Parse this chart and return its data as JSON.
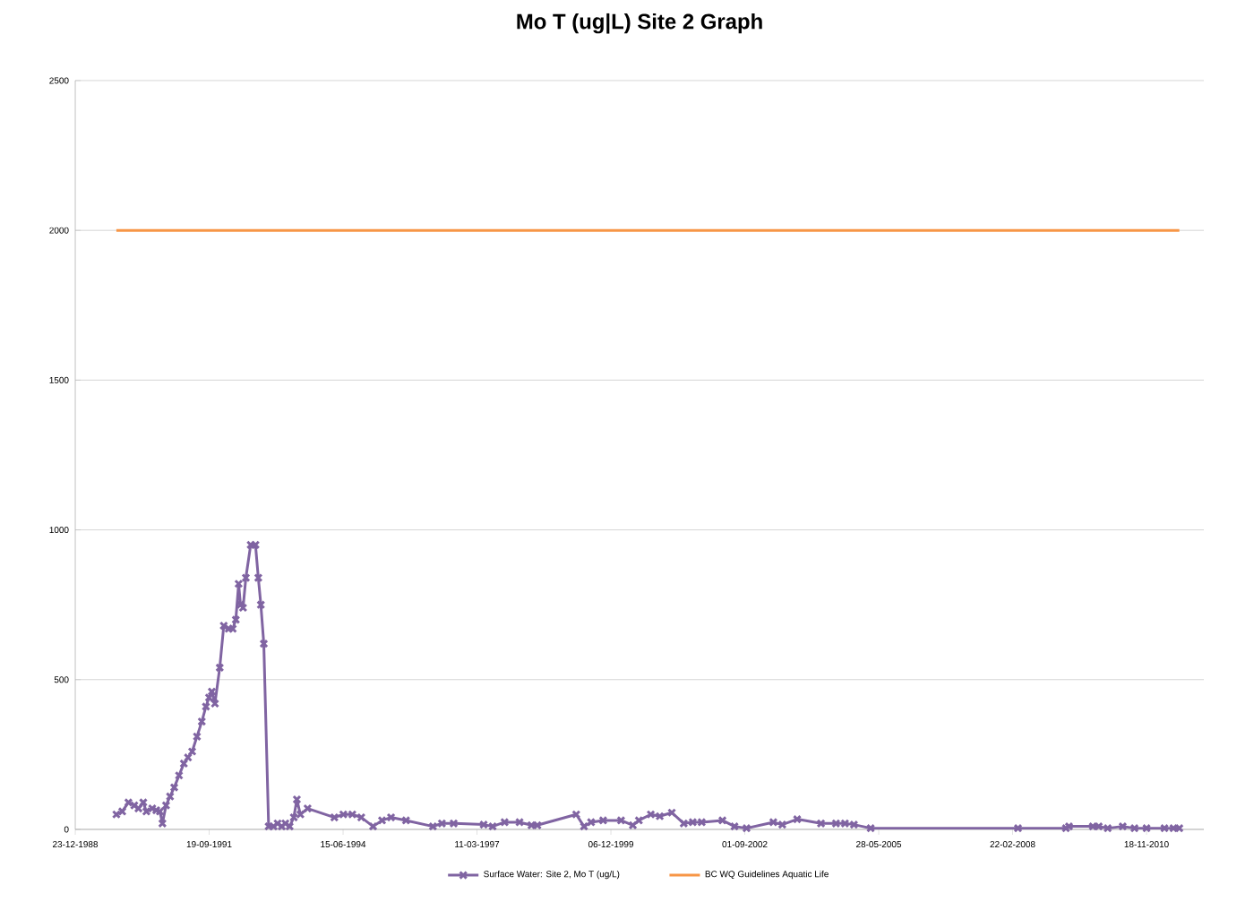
{
  "chart_data": {
    "type": "line",
    "title": "Mo T (ug|L)  Site 2 Graph",
    "xlim": [
      "1988-12-23",
      "2012-01-20"
    ],
    "ylim": [
      0,
      2500
    ],
    "xticks": [
      {
        "value": "1988-12-23",
        "label": "23-12-1988"
      },
      {
        "value": "1991-09-19",
        "label": "19-09-1991"
      },
      {
        "value": "1994-06-15",
        "label": "15-06-1994"
      },
      {
        "value": "1997-03-11",
        "label": "11-03-1997"
      },
      {
        "value": "1999-12-06",
        "label": "06-12-1999"
      },
      {
        "value": "2002-09-01",
        "label": "01-09-2002"
      },
      {
        "value": "2005-05-28",
        "label": "28-05-2005"
      },
      {
        "value": "2008-02-22",
        "label": "22-02-2008"
      },
      {
        "value": "2010-11-18",
        "label": "18-11-2010"
      }
    ],
    "yticks": [
      0,
      500,
      1000,
      1500,
      2000,
      2500
    ],
    "grid": "y",
    "legend": "bottom",
    "line_style": "solid",
    "series": [
      {
        "name": "Surface Water: Site 2, Mo T (ug/L)",
        "color": "#8064a2",
        "marker": "cross",
        "x": [
          "1989-10-26",
          "1989-12-09",
          "1990-01-24",
          "1990-03-09",
          "1990-04-09",
          "1990-05-15",
          "1990-06-07",
          "1990-07-21",
          "1990-08-20",
          "1990-09-16",
          "1990-10-05",
          "1990-11-01",
          "1990-12-01",
          "1991-01-01",
          "1991-02-06",
          "1991-03-14",
          "1991-04-14",
          "1991-05-15",
          "1991-06-20",
          "1991-07-26",
          "1991-08-26",
          "1991-09-18",
          "1991-10-09",
          "1991-11-01",
          "1991-12-07",
          "1992-01-06",
          "1992-02-12",
          "1992-03-13",
          "1992-04-05",
          "1992-04-26",
          "1992-05-10",
          "1992-05-29",
          "1992-06-19",
          "1992-07-25",
          "1992-08-30",
          "1992-09-20",
          "1992-10-09",
          "1992-10-31",
          "1992-12-06",
          "1993-01-12",
          "1993-02-11",
          "1993-03-14",
          "1993-04-10",
          "1993-05-12",
          "1993-06-12",
          "1993-07-05",
          "1993-07-31",
          "1993-09-23",
          "1994-04-11",
          "1994-06-17",
          "1994-08-23",
          "1994-10-29",
          "1995-01-25",
          "1995-04-02",
          "1995-06-08",
          "1995-09-28",
          "1996-04-16",
          "1996-06-22",
          "1996-09-18",
          "1997-04-30",
          "1997-07-06",
          "1997-10-03",
          "1998-01-23",
          "1998-04-22",
          "1998-06-05",
          "1999-03-22",
          "1999-05-19",
          "1999-07-11",
          "1999-10-09",
          "2000-02-20",
          "2000-05-18",
          "2000-07-02",
          "2000-09-29",
          "2000-12-05",
          "2001-03-05",
          "2001-06-02",
          "2001-08-08",
          "2001-10-14",
          "2002-03-18",
          "2002-06-16",
          "2002-09-14",
          "2003-04-02",
          "2003-06-08",
          "2003-09-27",
          "2004-03-23",
          "2004-07-13",
          "2004-09-18",
          "2004-11-24",
          "2005-03-29",
          "2008-04-02",
          "2009-03-26",
          "2009-04-18",
          "2009-10-13",
          "2009-11-26",
          "2010-02-01",
          "2010-05-24",
          "2010-08-20",
          "2010-11-18",
          "2011-04-01",
          "2011-06-07",
          "2011-07-21"
        ],
        "values": [
          50,
          60,
          90,
          80,
          70,
          90,
          60,
          70,
          64,
          60,
          20,
          80,
          110,
          140,
          180,
          220,
          240,
          260,
          310,
          360,
          410,
          440,
          460,
          420,
          540,
          680,
          670,
          670,
          700,
          820,
          750,
          740,
          840,
          950,
          950,
          840,
          750,
          620,
          10,
          10,
          20,
          10,
          20,
          10,
          40,
          100,
          50,
          70,
          40,
          50,
          50,
          40,
          10,
          30,
          40,
          30,
          10,
          20,
          20,
          16,
          10,
          24,
          24,
          14,
          14,
          50,
          10,
          24,
          30,
          30,
          14,
          30,
          50,
          44,
          56,
          20,
          24,
          24,
          30,
          10,
          4,
          24,
          16,
          34,
          20,
          20,
          20,
          16,
          4,
          4,
          4,
          10,
          10,
          10,
          4,
          10,
          4,
          4,
          4,
          4,
          4
        ]
      },
      {
        "name": "BC WQ Guidelines Aquatic Life",
        "color": "#f79646",
        "marker": "none",
        "x": [
          "1989-10-26",
          "2011-07-21"
        ],
        "values": [
          2000,
          2000
        ]
      }
    ]
  }
}
